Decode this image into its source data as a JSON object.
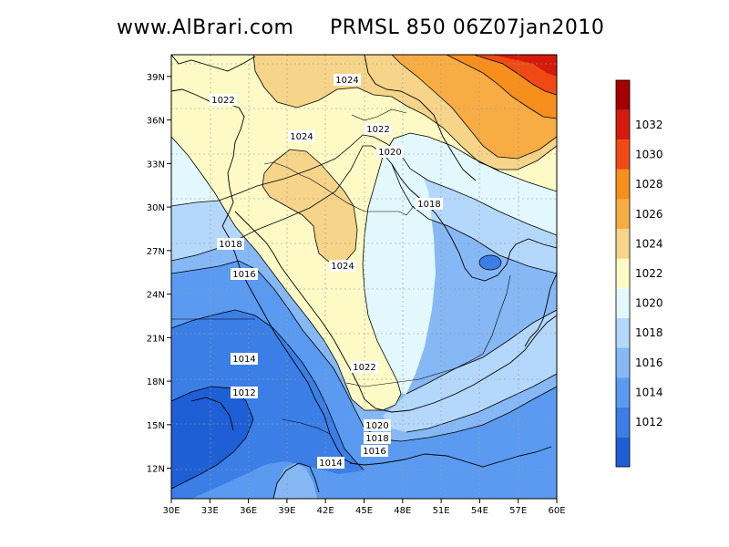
{
  "header": {
    "site": "www.AlBrari.com",
    "title": "PRMSL  850  06Z07jan2010"
  },
  "axes": {
    "x_ticks": [
      "30E",
      "33E",
      "36E",
      "39E",
      "42E",
      "45E",
      "48E",
      "51E",
      "54E",
      "57E",
      "60E"
    ],
    "y_ticks": [
      "12N",
      "15N",
      "18N",
      "21N",
      "24N",
      "27N",
      "30N",
      "33N",
      "36N",
      "39N"
    ],
    "x_range": [
      30,
      60
    ],
    "y_range": [
      9.9,
      40.5
    ],
    "grid": true
  },
  "contour_labels": [
    "1024",
    "1022",
    "1024",
    "1022",
    "1020",
    "1018",
    "1018",
    "1016",
    "1024",
    "1014",
    "1012",
    "1022",
    "1020",
    "1018",
    "1016",
    "1014"
  ],
  "colorbar": {
    "levels": [
      "1012",
      "1014",
      "1016",
      "1018",
      "1020",
      "1022",
      "1024",
      "1026",
      "1028",
      "1030",
      "1032"
    ],
    "colors": [
      "#1f5fd6",
      "#3a7ee6",
      "#5a9af0",
      "#86b8f5",
      "#b4d8fb",
      "#e2f8fc",
      "#fdfac6",
      "#f6d58a",
      "#f7ad44",
      "#f78f1c",
      "#f04a14",
      "#d31a0c",
      "#a30000"
    ]
  }
}
